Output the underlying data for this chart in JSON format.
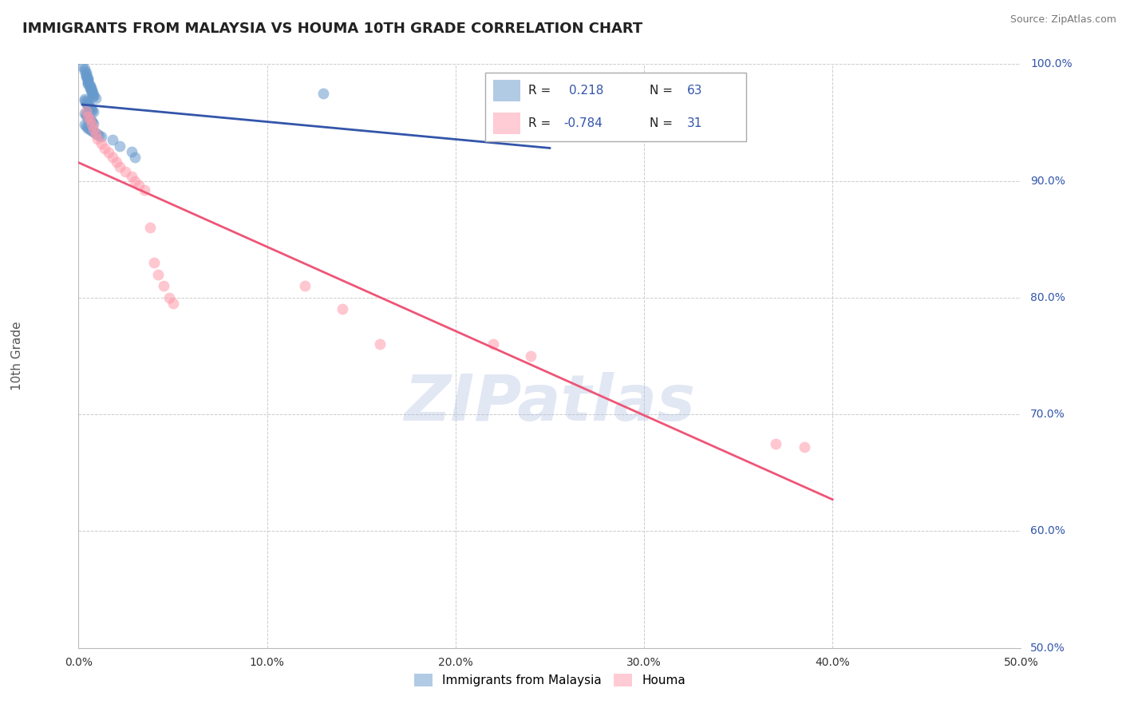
{
  "title": "IMMIGRANTS FROM MALAYSIA VS HOUMA 10TH GRADE CORRELATION CHART",
  "source": "Source: ZipAtlas.com",
  "ylabel": "10th Grade",
  "legend_label_blue": "Immigrants from Malaysia",
  "legend_label_pink": "Houma",
  "xlim": [
    0.0,
    0.5
  ],
  "ylim": [
    0.5,
    1.0
  ],
  "xtick_vals": [
    0.0,
    0.1,
    0.2,
    0.3,
    0.4,
    0.5
  ],
  "xtick_labels": [
    "0.0%",
    "10.0%",
    "20.0%",
    "30.0%",
    "40.0%",
    "50.0%"
  ],
  "ytick_vals": [
    0.5,
    0.6,
    0.7,
    0.8,
    0.9,
    1.0
  ],
  "ytick_labels": [
    "50.0%",
    "60.0%",
    "70.0%",
    "80.0%",
    "90.0%",
    "100.0%"
  ],
  "blue_R": 0.218,
  "blue_N": 63,
  "pink_R": -0.784,
  "pink_N": 31,
  "blue_color": "#6699CC",
  "pink_color": "#FF99AA",
  "blue_line_color": "#3355AA",
  "pink_line_color": "#EE5577",
  "watermark": "ZIPatlas",
  "blue_scatter_x": [
    0.002,
    0.003,
    0.003,
    0.004,
    0.004,
    0.004,
    0.004,
    0.005,
    0.005,
    0.005,
    0.005,
    0.005,
    0.005,
    0.006,
    0.006,
    0.006,
    0.006,
    0.007,
    0.007,
    0.007,
    0.007,
    0.008,
    0.008,
    0.008,
    0.009,
    0.003,
    0.003,
    0.004,
    0.004,
    0.005,
    0.005,
    0.005,
    0.006,
    0.006,
    0.007,
    0.007,
    0.008,
    0.003,
    0.004,
    0.004,
    0.005,
    0.005,
    0.006,
    0.006,
    0.007,
    0.007,
    0.008,
    0.003,
    0.004,
    0.005,
    0.005,
    0.006,
    0.007,
    0.008,
    0.009,
    0.01,
    0.011,
    0.012,
    0.018,
    0.022,
    0.028,
    0.03,
    0.13
  ],
  "blue_scatter_y": [
    0.998,
    0.996,
    0.994,
    0.993,
    0.991,
    0.99,
    0.989,
    0.988,
    0.987,
    0.986,
    0.985,
    0.984,
    0.983,
    0.982,
    0.981,
    0.98,
    0.979,
    0.978,
    0.977,
    0.976,
    0.975,
    0.974,
    0.973,
    0.972,
    0.971,
    0.97,
    0.969,
    0.968,
    0.967,
    0.966,
    0.965,
    0.964,
    0.963,
    0.962,
    0.961,
    0.96,
    0.959,
    0.958,
    0.957,
    0.956,
    0.955,
    0.954,
    0.953,
    0.952,
    0.951,
    0.95,
    0.949,
    0.948,
    0.947,
    0.946,
    0.945,
    0.944,
    0.943,
    0.942,
    0.941,
    0.94,
    0.939,
    0.938,
    0.935,
    0.93,
    0.925,
    0.92,
    0.975
  ],
  "pink_scatter_x": [
    0.004,
    0.005,
    0.006,
    0.007,
    0.008,
    0.009,
    0.01,
    0.012,
    0.014,
    0.016,
    0.018,
    0.02,
    0.022,
    0.025,
    0.028,
    0.03,
    0.032,
    0.035,
    0.038,
    0.04,
    0.042,
    0.045,
    0.048,
    0.05,
    0.12,
    0.14,
    0.16,
    0.22,
    0.24,
    0.37,
    0.385
  ],
  "pink_scatter_y": [
    0.96,
    0.955,
    0.952,
    0.948,
    0.944,
    0.94,
    0.936,
    0.932,
    0.928,
    0.924,
    0.92,
    0.916,
    0.912,
    0.908,
    0.904,
    0.9,
    0.896,
    0.892,
    0.86,
    0.83,
    0.82,
    0.81,
    0.8,
    0.795,
    0.81,
    0.79,
    0.76,
    0.76,
    0.75,
    0.675,
    0.672
  ],
  "blue_line_start_x": 0.002,
  "blue_line_end_x": 0.25,
  "pink_line_start_x": 0.0,
  "pink_line_end_x": 0.4
}
